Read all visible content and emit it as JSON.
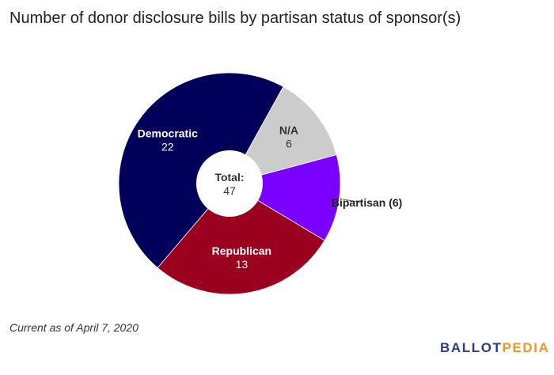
{
  "chart_data": {
    "type": "pie",
    "donut": true,
    "title": "Number of donor disclosure bills by partisan status of sponsor(s)",
    "center_label": {
      "title": "Total:",
      "value": "47"
    },
    "slices": [
      {
        "label": "N/A",
        "value": 6,
        "color": "#cccccc",
        "text_color": "#333333",
        "display": "inside",
        "value_text": "6"
      },
      {
        "label": "Bipartisan",
        "value": 6,
        "color": "#7a00ff",
        "text_color": "#222222",
        "display": "outside",
        "outside_text": "Bipartisan (6)"
      },
      {
        "label": "Republican",
        "value": 13,
        "color": "#9b001f",
        "text_color": "#ffffff",
        "display": "inside",
        "value_text": "13"
      },
      {
        "label": "Democratic",
        "value": 22,
        "color": "#00005a",
        "text_color": "#ffffff",
        "display": "inside",
        "value_text": "22"
      }
    ],
    "start_angle_deg": 29
  },
  "footnote": "Current as of April 7, 2020",
  "logo": {
    "part1": "BALLOT",
    "part2": "PEDIA"
  }
}
